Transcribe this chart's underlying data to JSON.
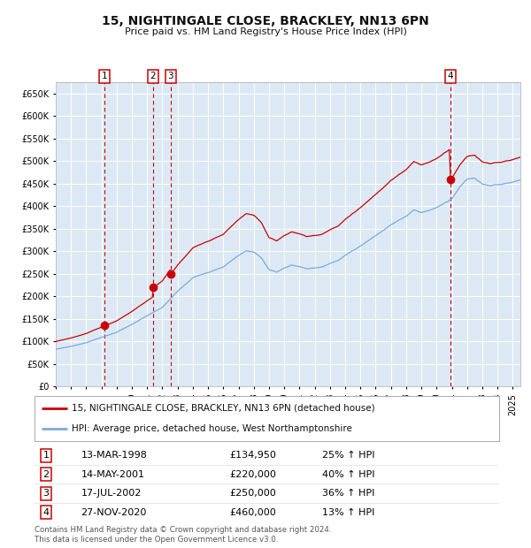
{
  "title": "15, NIGHTINGALE CLOSE, BRACKLEY, NN13 6PN",
  "subtitle": "Price paid vs. HM Land Registry's House Price Index (HPI)",
  "footer1": "Contains HM Land Registry data © Crown copyright and database right 2024.",
  "footer2": "This data is licensed under the Open Government Licence v3.0.",
  "legend_line1": "15, NIGHTINGALE CLOSE, BRACKLEY, NN13 6PN (detached house)",
  "legend_line2": "HPI: Average price, detached house, West Northamptonshire",
  "transactions": [
    {
      "label": "1",
      "date": "13-MAR-1998",
      "price": "£134,950",
      "pct": "25% ↑ HPI",
      "year": 1998.21
    },
    {
      "label": "2",
      "date": "14-MAY-2001",
      "price": "£220,000",
      "pct": "40% ↑ HPI",
      "year": 2001.37
    },
    {
      "label": "3",
      "date": "17-JUL-2002",
      "price": "£250,000",
      "pct": "36% ↑ HPI",
      "year": 2002.54
    },
    {
      "label": "4",
      "date": "27-NOV-2020",
      "price": "£460,000",
      "pct": "13% ↑ HPI",
      "year": 2020.91
    }
  ],
  "transaction_values": [
    134950,
    220000,
    250000,
    460000
  ],
  "plot_bg": "#dce9f5",
  "grid_color": "#ffffff",
  "red_line_color": "#cc0000",
  "blue_line_color": "#7aaadd",
  "dashed_color": "#cc0000",
  "marker_color": "#cc0000",
  "ylim": [
    0,
    675000
  ],
  "xlim_start": 1995.0,
  "xlim_end": 2025.5
}
